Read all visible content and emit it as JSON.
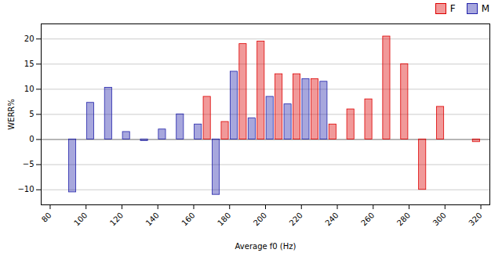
{
  "chart_data": {
    "type": "bar",
    "x": [
      90,
      100,
      110,
      120,
      130,
      140,
      150,
      160,
      170,
      180,
      190,
      200,
      210,
      220,
      230,
      240,
      250,
      260,
      270,
      280,
      290,
      300,
      310,
      320
    ],
    "series": [
      {
        "name": "F",
        "color": "#dd0000",
        "values": [
          0.0,
          0.0,
          0.0,
          0.0,
          0.0,
          0.0,
          0.0,
          0.0,
          8.5,
          3.5,
          19.0,
          19.5,
          13.0,
          13.0,
          12.0,
          3.0,
          6.0,
          8.0,
          20.5,
          15.0,
          -10.0,
          6.5,
          0.0,
          -0.5
        ]
      },
      {
        "name": "M",
        "color": "#2222aa",
        "values": [
          -10.5,
          7.3,
          10.3,
          1.5,
          -0.3,
          2.0,
          5.0,
          3.0,
          -11.0,
          13.5,
          4.2,
          8.5,
          7.0,
          12.0,
          11.5,
          0.0,
          0.0,
          0.0,
          0.0,
          0.0,
          0.0,
          0.0,
          0.0,
          0.0
        ]
      }
    ],
    "xlabel": "Average f0 (Hz)",
    "ylabel": "WERR%",
    "xlim": [
      75,
      325
    ],
    "ylim": [
      -13,
      23
    ],
    "xticks": [
      80,
      100,
      120,
      140,
      160,
      180,
      200,
      220,
      240,
      260,
      280,
      300,
      320
    ],
    "yticks": [
      -10,
      -5,
      0,
      5,
      10,
      15,
      20
    ],
    "grid": true,
    "legend": "upper right"
  }
}
